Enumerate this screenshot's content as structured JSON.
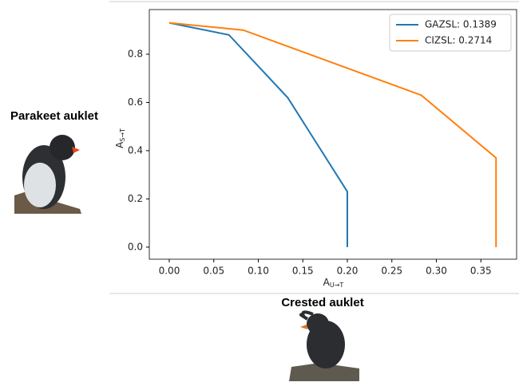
{
  "chart_data": {
    "type": "line",
    "xlabel": "A",
    "xlabel_sub": "U→T",
    "ylabel": "A",
    "ylabel_sub": "S→T",
    "xlim": [
      -0.0224,
      0.391
    ],
    "ylim": [
      -0.05,
      0.985
    ],
    "xticks": [
      {
        "value": 0,
        "label": "0.00"
      },
      0.05,
      {
        "value": 0.1,
        "label": "0.10"
      },
      0.15,
      {
        "value": 0.2,
        "label": "0.20"
      },
      0.25,
      {
        "value": 0.3,
        "label": "0.30"
      },
      0.35
    ],
    "yticks": [
      {
        "value": 0,
        "label": "0.0"
      },
      0.2,
      0.4,
      0.6,
      0.8
    ],
    "legend": "upper right",
    "series": [
      {
        "name": "GAZSL: 0.1389",
        "color": "#1f77b4",
        "x": [
          0,
          0.067,
          0.133,
          0.2,
          0.2
        ],
        "values": [
          0.93,
          0.88,
          0.62,
          0.23,
          0
        ]
      },
      {
        "name": "CIZSL: 0.2714",
        "color": "#ff7f0e",
        "x": [
          0,
          0.083,
          0.283,
          0.367,
          0.367
        ],
        "values": [
          0.93,
          0.9,
          0.63,
          0.37,
          0
        ]
      }
    ]
  },
  "images": [
    {
      "label": "Parakeet auklet"
    },
    {
      "label": "Crested auklet"
    }
  ]
}
